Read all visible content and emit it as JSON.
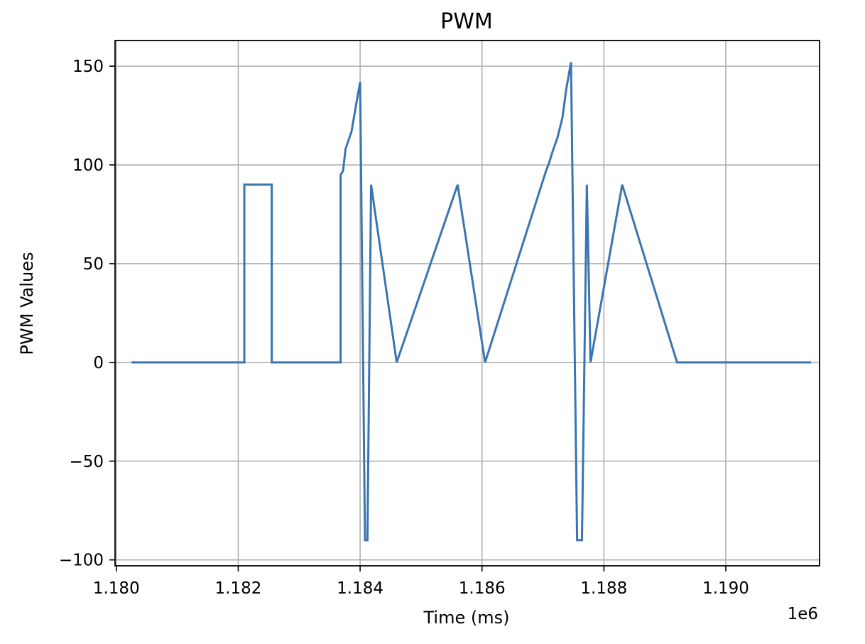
{
  "chart_data": {
    "type": "line",
    "title": "PWM",
    "xlabel": "Time (ms)",
    "ylabel": "PWM Values",
    "x_offset_label": "1e6",
    "x_scale": 1000000,
    "xlim": [
      1179979,
      1191538
    ],
    "ylim": [
      -103,
      163
    ],
    "x_ticks": [
      1180000,
      1182000,
      1184000,
      1186000,
      1188000,
      1190000
    ],
    "x_tick_labels": [
      "1.180",
      "1.182",
      "1.184",
      "1.186",
      "1.188",
      "1.190"
    ],
    "y_ticks": [
      -100,
      -50,
      0,
      50,
      100,
      150
    ],
    "y_tick_labels": [
      "−100",
      "−50",
      "0",
      "50",
      "100",
      "150"
    ],
    "grid": true,
    "series_color": "#3a75b0",
    "series": [
      {
        "x": [
          1180250,
          1182100,
          1182100,
          1182550,
          1182550,
          1183680,
          1183680,
          1183720,
          1183760,
          1183760,
          1183860,
          1183860,
          1183920,
          1183920,
          1184000,
          1184000,
          1184080,
          1184080,
          1184120,
          1184120,
          1184180,
          1184180,
          1184600,
          1184600,
          1185600,
          1185600,
          1186050,
          1186050,
          1187050,
          1187050,
          1187100,
          1187100,
          1187160,
          1187160,
          1187240,
          1187240,
          1187320,
          1187320,
          1187380,
          1187380,
          1187460,
          1187460,
          1187560,
          1187560,
          1187640,
          1187640,
          1187720,
          1187720,
          1187780,
          1187780,
          1188300,
          1188300,
          1189200,
          1189200,
          1189500,
          1189500,
          1191400
        ],
        "y": [
          0,
          0,
          90,
          90,
          0,
          0,
          95,
          97,
          108,
          108,
          117,
          117,
          128,
          128,
          142,
          142,
          -90,
          -90,
          -90,
          -90,
          90,
          90,
          0,
          0,
          90,
          90,
          0,
          0,
          97,
          97,
          101,
          101,
          107,
          107,
          114,
          114,
          124,
          124,
          138,
          138,
          152,
          152,
          -90,
          -90,
          -90,
          -90,
          90,
          90,
          0,
          0,
          90,
          90,
          0,
          0,
          0,
          0,
          0
        ]
      }
    ]
  }
}
